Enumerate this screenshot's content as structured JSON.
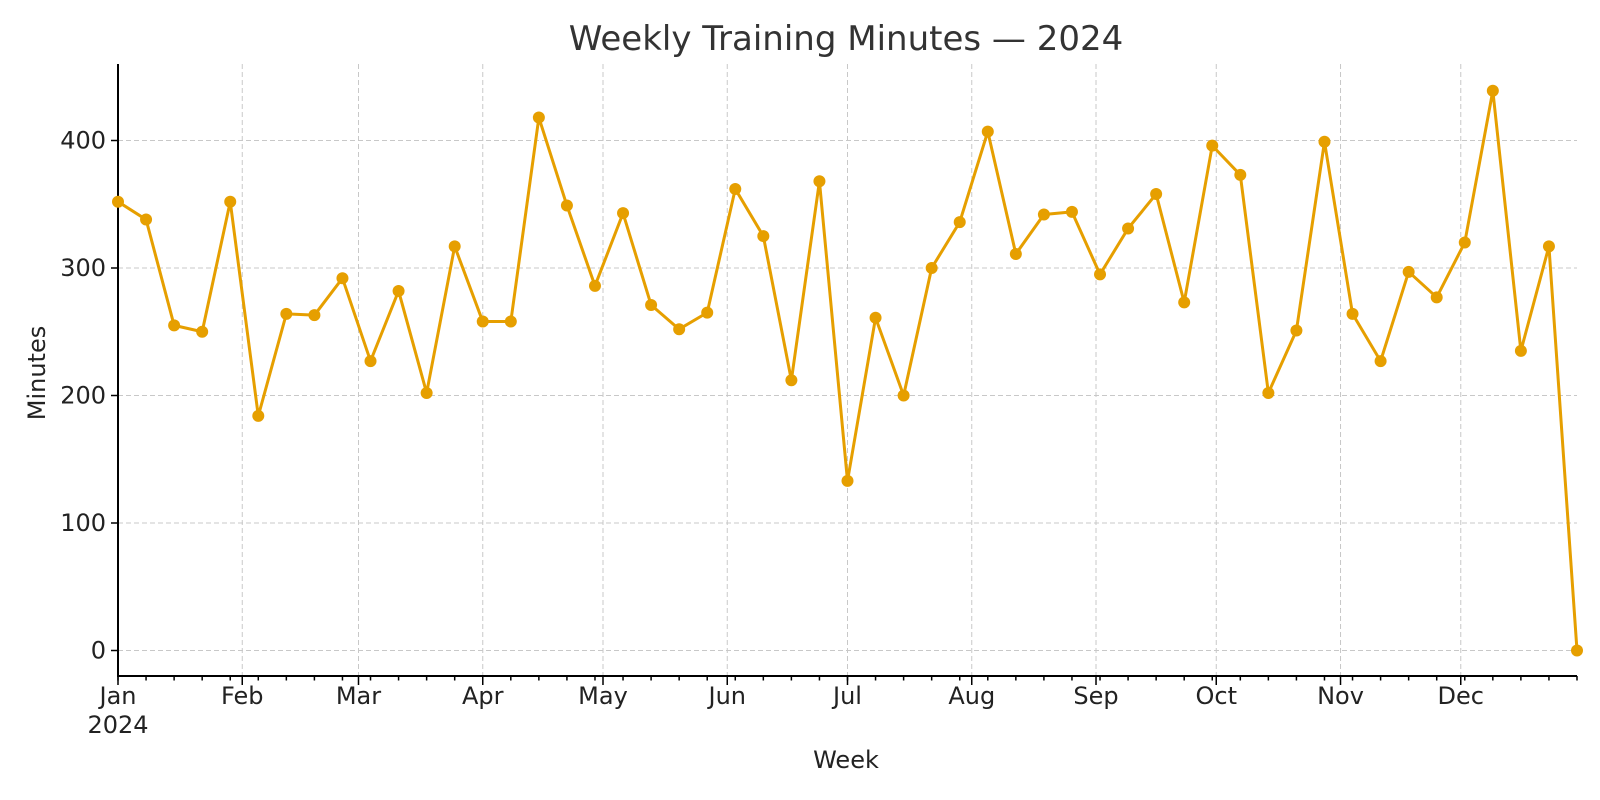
{
  "chart_data": {
    "type": "line",
    "title": "Weekly Training Minutes — 2024",
    "xlabel": "Week",
    "ylabel": "Minutes",
    "ylim": [
      -20,
      460
    ],
    "xlim": [
      "2024-01-01",
      "2024-12-30"
    ],
    "y_ticks": [
      0,
      100,
      200,
      300,
      400
    ],
    "x_ticks": [
      {
        "date": "2024-01-01",
        "label": "Jan",
        "sublabel": "2024"
      },
      {
        "date": "2024-02-01",
        "label": "Feb"
      },
      {
        "date": "2024-03-01",
        "label": "Mar"
      },
      {
        "date": "2024-04-01",
        "label": "Apr"
      },
      {
        "date": "2024-05-01",
        "label": "May"
      },
      {
        "date": "2024-06-01",
        "label": "Jun"
      },
      {
        "date": "2024-07-01",
        "label": "Jul"
      },
      {
        "date": "2024-08-01",
        "label": "Aug"
      },
      {
        "date": "2024-09-01",
        "label": "Sep"
      },
      {
        "date": "2024-10-01",
        "label": "Oct"
      },
      {
        "date": "2024-11-01",
        "label": "Nov"
      },
      {
        "date": "2024-12-01",
        "label": "Dec"
      }
    ],
    "grid": true,
    "color": "#E69F00",
    "series": [
      {
        "x": [
          "2024-01-01",
          "2024-01-08",
          "2024-01-15",
          "2024-01-22",
          "2024-01-29",
          "2024-02-05",
          "2024-02-12",
          "2024-02-19",
          "2024-02-26",
          "2024-03-04",
          "2024-03-11",
          "2024-03-18",
          "2024-03-25",
          "2024-04-01",
          "2024-04-08",
          "2024-04-15",
          "2024-04-22",
          "2024-04-29",
          "2024-05-06",
          "2024-05-13",
          "2024-05-20",
          "2024-05-27",
          "2024-06-03",
          "2024-06-10",
          "2024-06-17",
          "2024-06-24",
          "2024-07-01",
          "2024-07-08",
          "2024-07-15",
          "2024-07-22",
          "2024-07-29",
          "2024-08-05",
          "2024-08-12",
          "2024-08-19",
          "2024-08-26",
          "2024-09-02",
          "2024-09-09",
          "2024-09-16",
          "2024-09-23",
          "2024-09-30",
          "2024-10-07",
          "2024-10-14",
          "2024-10-21",
          "2024-10-28",
          "2024-11-04",
          "2024-11-11",
          "2024-11-18",
          "2024-11-25",
          "2024-12-02",
          "2024-12-09",
          "2024-12-16",
          "2024-12-23",
          "2024-12-30"
        ],
        "values": [
          352,
          338,
          255,
          250,
          352,
          184,
          264,
          263,
          292,
          227,
          282,
          202,
          317,
          258,
          258,
          418,
          349,
          286,
          343,
          271,
          252,
          265,
          362,
          325,
          212,
          368,
          133,
          261,
          200,
          300,
          336,
          407,
          311,
          342,
          344,
          295,
          331,
          358,
          273,
          396,
          373,
          202,
          251,
          399,
          264,
          227,
          297,
          277,
          320,
          439,
          235,
          317,
          0
        ]
      }
    ]
  }
}
